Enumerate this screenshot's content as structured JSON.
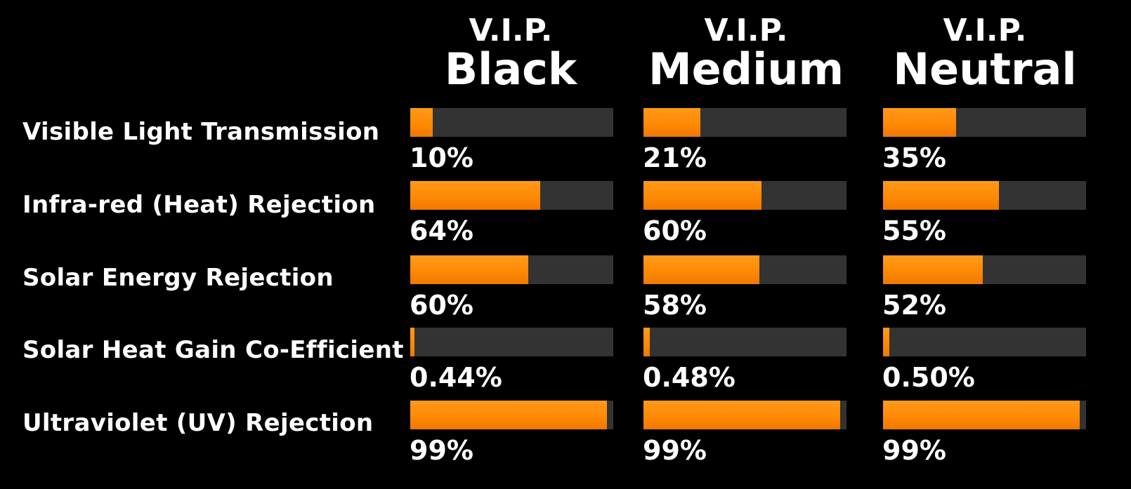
{
  "chart_data": {
    "type": "bar",
    "orientation": "horizontal",
    "categories": [
      "Visible Light Transmission",
      "Infra-red (Heat) Rejection",
      "Solar Energy Rejection",
      "Solar Heat Gain Co-Efficient",
      "Ultraviolet (UV) Rejection"
    ],
    "series": [
      {
        "prefix": "V.I.P.",
        "name": "Black",
        "values": [
          10,
          64,
          60,
          0.44,
          99
        ],
        "labels": [
          "10%",
          "64%",
          "60%",
          "0.44%",
          "99%"
        ]
      },
      {
        "prefix": "V.I.P.",
        "name": "Medium",
        "values": [
          21,
          60,
          58,
          0.48,
          99
        ],
        "labels": [
          "21%",
          "60%",
          "58%",
          "0.48%",
          "99%"
        ]
      },
      {
        "prefix": "V.I.P.",
        "name": "Neutral",
        "values": [
          35,
          55,
          52,
          0.5,
          99
        ],
        "labels": [
          "35%",
          "55%",
          "52%",
          "0.50%",
          "99%"
        ]
      }
    ],
    "bar_fill_fraction": [
      [
        0.11,
        0.64,
        0.58,
        0.02,
        0.97
      ],
      [
        0.28,
        0.58,
        0.57,
        0.03,
        0.97
      ],
      [
        0.36,
        0.57,
        0.49,
        0.03,
        0.97
      ]
    ],
    "xlim": [
      0,
      100
    ],
    "grid": false,
    "legend": "none"
  },
  "colors": {
    "background": "#000000",
    "track": "#333333",
    "fill": "#ff8c0a",
    "text": "#ffffff"
  }
}
